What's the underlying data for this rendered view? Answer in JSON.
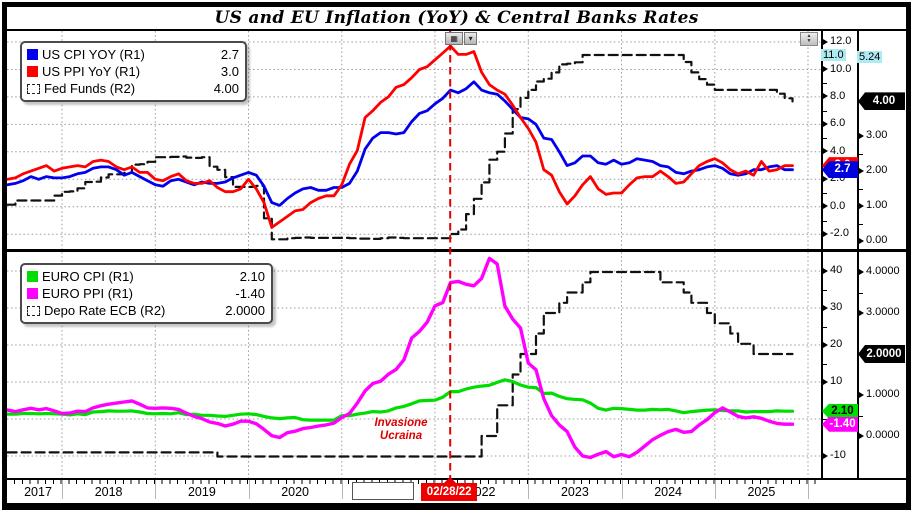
{
  "window": {
    "title": "US and EU Inflation (YoY) & Central Banks Rates"
  },
  "colors": {
    "highlight": "#aeeaf2",
    "us_cpi": "#0000ee",
    "us_ppi": "#ff0000",
    "eu_cpi": "#00dd00",
    "eu_ppi": "#ff00ff",
    "policy_rate": "#111111",
    "event": "#dd0000"
  },
  "chart_data": {
    "type": "line",
    "title": "US and EU Inflation (YoY) & Central Banks Rates",
    "x_axis": {
      "year_labels": [
        "2017",
        "2018",
        "2019",
        "2020",
        "2021",
        "2022",
        "2023",
        "2024",
        "2025"
      ],
      "gridline_years": [
        2018,
        2019,
        2020,
        2021,
        2022,
        2023,
        2024,
        2025,
        2026
      ],
      "visible_range": [
        2017.42,
        2026.14
      ],
      "points_start": "2017-06",
      "points_frequency": "monthly"
    },
    "event_line": {
      "date": "02/28/22",
      "t": 2022.163,
      "label_lines": [
        "Invasione",
        "Ucraina"
      ],
      "color": "#e00000"
    },
    "panels": [
      {
        "id": "us",
        "legend": [
          {
            "label": "US CPI YOY  (R1)",
            "value": "2.7",
            "swatch": "#0000ee",
            "swatch_type": "solid"
          },
          {
            "label": "US PPI YoY (R1)",
            "value": "3.0",
            "swatch": "#ff0000",
            "swatch_type": "solid"
          },
          {
            "label": "Fed Funds (R2)",
            "value": "4.00",
            "swatch": "#000000",
            "swatch_type": "dashed"
          }
        ],
        "gridlines_r1": [
          12,
          10,
          8,
          6,
          4,
          2,
          0,
          -2
        ],
        "r1_axis": {
          "ticks": {
            "values": [
              12,
              10,
              8,
              6,
              4,
              2,
              0,
              -2
            ],
            "labels": [
              "12.0",
              "10.0",
              "8.0",
              "6.0",
              "4.0",
              "2.0",
              "0.0",
              "-2.0"
            ]
          },
          "visible_range": [
            -3.1,
            12.8
          ],
          "high": {
            "label": "11.0",
            "v": 11.0
          },
          "badges": [
            {
              "label": "3.0",
              "v": 3.0,
              "bg": "#ff0000",
              "fg": "#ffffff"
            },
            {
              "label": "2.7",
              "v": 2.7,
              "bg": "#0000dd",
              "fg": "#ffffff"
            }
          ]
        },
        "r2_axis": {
          "ticks": {
            "values": [
              3,
              2,
              1,
              0
            ],
            "labels": [
              "3.00",
              "2.00",
              "1.00",
              "0.00"
            ]
          },
          "visible_range": [
            -0.23,
            6.02
          ],
          "high": {
            "label": "5.24",
            "v": 5.24
          },
          "badges": [
            {
              "label": "4.00",
              "v": 4.0,
              "bg": "#000000",
              "fg": "#ffffff"
            }
          ]
        },
        "series": [
          {
            "name": "Fed Funds",
            "axis": "r2",
            "color": "#111111",
            "dash": true,
            "step": true,
            "width": 2.2,
            "values": [
              1.04,
              1.16,
              1.16,
              1.16,
              1.16,
              1.16,
              1.3,
              1.41,
              1.42,
              1.51,
              1.69,
              1.7,
              1.82,
              1.91,
              1.91,
              1.95,
              2.19,
              2.2,
              2.27,
              2.4,
              2.4,
              2.41,
              2.42,
              2.39,
              2.38,
              2.4,
              2.13,
              2.04,
              1.83,
              1.55,
              1.55,
              1.55,
              1.58,
              0.65,
              0.05,
              0.05,
              0.08,
              0.09,
              0.1,
              0.09,
              0.09,
              0.09,
              0.09,
              0.09,
              0.08,
              0.07,
              0.07,
              0.06,
              0.08,
              0.1,
              0.09,
              0.08,
              0.08,
              0.08,
              0.08,
              0.08,
              0.08,
              0.2,
              0.33,
              0.77,
              1.21,
              1.68,
              2.33,
              2.56,
              3.08,
              3.78,
              4.1,
              4.33,
              4.57,
              4.65,
              4.83,
              5.06,
              5.08,
              5.12,
              5.33,
              5.33,
              5.33,
              5.33,
              5.33,
              5.33,
              5.33,
              5.33,
              5.33,
              5.33,
              5.33,
              5.33,
              5.33,
              5.13,
              4.83,
              4.64,
              4.48,
              4.33,
              4.33,
              4.33,
              4.33,
              4.33,
              4.33,
              4.33,
              4.33,
              4.22,
              4.09,
              4.0
            ]
          },
          {
            "name": "US CPI YOY",
            "axis": "r1",
            "color": "#0000ee",
            "dash": false,
            "step": false,
            "width": 2.8,
            "values": [
              1.6,
              1.7,
              1.9,
              2.2,
              2.0,
              2.2,
              2.1,
              2.1,
              2.2,
              2.4,
              2.5,
              2.8,
              2.9,
              2.9,
              2.7,
              2.3,
              2.5,
              2.2,
              1.9,
              1.6,
              1.5,
              1.9,
              2.0,
              1.8,
              1.6,
              1.8,
              1.7,
              1.7,
              1.8,
              2.1,
              2.3,
              2.5,
              2.3,
              1.5,
              0.3,
              0.1,
              0.6,
              1.0,
              1.3,
              1.4,
              1.2,
              1.2,
              1.4,
              1.4,
              1.7,
              2.6,
              4.2,
              5.0,
              5.4,
              5.4,
              5.3,
              5.4,
              6.2,
              6.8,
              7.0,
              7.5,
              7.9,
              8.5,
              8.3,
              8.6,
              9.1,
              8.5,
              8.3,
              8.2,
              7.7,
              7.1,
              6.5,
              6.4,
              6.0,
              5.0,
              4.9,
              4.0,
              3.0,
              3.2,
              3.7,
              3.7,
              3.2,
              3.1,
              3.4,
              3.1,
              3.2,
              3.5,
              3.4,
              3.3,
              3.0,
              2.9,
              2.5,
              2.4,
              2.6,
              2.7,
              2.9,
              3.0,
              2.8,
              2.4,
              2.3,
              2.4,
              2.7,
              2.7,
              2.9,
              3.0,
              2.7,
              2.7
            ]
          },
          {
            "name": "US PPI YoY",
            "axis": "r1",
            "color": "#ff0000",
            "dash": false,
            "step": false,
            "width": 2.8,
            "values": [
              2.0,
              2.1,
              2.4,
              2.6,
              2.8,
              3.0,
              2.6,
              2.8,
              2.9,
              3.0,
              2.9,
              3.3,
              3.4,
              3.3,
              2.9,
              2.7,
              2.9,
              2.5,
              2.5,
              2.0,
              1.9,
              2.2,
              2.4,
              1.9,
              1.7,
              1.7,
              1.9,
              1.4,
              1.1,
              1.1,
              1.3,
              2.0,
              1.3,
              0.3,
              -1.5,
              -1.1,
              -0.7,
              -0.3,
              -0.2,
              0.3,
              0.6,
              0.8,
              0.8,
              1.6,
              3.1,
              4.1,
              6.5,
              7.0,
              7.6,
              8.0,
              8.7,
              8.9,
              9.4,
              10.0,
              10.2,
              10.7,
              11.2,
              11.7,
              11.1,
              11.1,
              11.3,
              9.8,
              8.9,
              8.5,
              8.2,
              7.4,
              6.5,
              5.7,
              4.7,
              2.7,
              2.3,
              1.1,
              0.2,
              0.8,
              1.6,
              2.2,
              1.3,
              0.9,
              1.0,
              1.0,
              1.6,
              2.1,
              2.2,
              2.2,
              2.6,
              2.2,
              1.7,
              1.8,
              2.4,
              3.0,
              3.3,
              3.5,
              3.2,
              2.7,
              2.4,
              2.6,
              2.3,
              3.3,
              2.6,
              2.7,
              3.0,
              3.0
            ]
          }
        ]
      },
      {
        "id": "eu",
        "legend": [
          {
            "label": "EURO CPI (R1)",
            "value": "2.10",
            "swatch": "#00dd00",
            "swatch_type": "solid"
          },
          {
            "label": "EURO PPI (R1)",
            "value": "-1.40",
            "swatch": "#ff00ff",
            "swatch_type": "solid"
          },
          {
            "label": "Depo Rate ECB (R2)",
            "value": "2.0000",
            "swatch": "#000000",
            "swatch_type": "dashed"
          }
        ],
        "gridlines_r1": [
          40,
          30,
          20,
          10,
          0,
          -10
        ],
        "r1_axis": {
          "ticks": {
            "values": [
              40,
              30,
              20,
              10,
              -10
            ],
            "labels": [
              "40",
              "30",
              "20",
              "10",
              "-10"
            ]
          },
          "visible_range": [
            -15.9,
            45.1
          ],
          "high": null,
          "badges": [
            {
              "label": "2.10",
              "v": 2.1,
              "bg": "#00dd00",
              "fg": "#000000"
            },
            {
              "label": "-1.40",
              "v": -1.4,
              "bg": "#ff00ff",
              "fg": "#ffffff"
            }
          ]
        },
        "r2_axis": {
          "ticks": {
            "values": [
              4,
              3,
              1,
              0
            ],
            "labels": [
              "4.0000",
              "3.0000",
              "1.0000",
              "0.0000"
            ]
          },
          "visible_range": [
            -1.02,
            4.49
          ],
          "high": null,
          "badges": [
            {
              "label": "2.0000",
              "v": 2.0,
              "bg": "#000000",
              "fg": "#ffffff"
            }
          ]
        },
        "series": [
          {
            "name": "Depo Rate ECB",
            "axis": "r2",
            "color": "#111111",
            "dash": true,
            "step": true,
            "width": 2.2,
            "values": [
              -0.4,
              -0.4,
              -0.4,
              -0.4,
              -0.4,
              -0.4,
              -0.4,
              -0.4,
              -0.4,
              -0.4,
              -0.4,
              -0.4,
              -0.4,
              -0.4,
              -0.4,
              -0.4,
              -0.4,
              -0.4,
              -0.4,
              -0.4,
              -0.4,
              -0.4,
              -0.4,
              -0.4,
              -0.4,
              -0.4,
              -0.4,
              -0.5,
              -0.5,
              -0.5,
              -0.5,
              -0.5,
              -0.5,
              -0.5,
              -0.5,
              -0.5,
              -0.5,
              -0.5,
              -0.5,
              -0.5,
              -0.5,
              -0.5,
              -0.5,
              -0.5,
              -0.5,
              -0.5,
              -0.5,
              -0.5,
              -0.5,
              -0.5,
              -0.5,
              -0.5,
              -0.5,
              -0.5,
              -0.5,
              -0.5,
              -0.5,
              -0.5,
              -0.5,
              -0.5,
              -0.5,
              0.0,
              0.0,
              0.75,
              0.75,
              1.5,
              2.0,
              2.0,
              2.5,
              3.0,
              3.0,
              3.25,
              3.5,
              3.5,
              3.75,
              4.0,
              4.0,
              4.0,
              4.0,
              4.0,
              4.0,
              4.0,
              4.0,
              4.0,
              3.75,
              3.75,
              3.75,
              3.5,
              3.25,
              3.25,
              3.0,
              2.75,
              2.75,
              2.5,
              2.25,
              2.25,
              2.0,
              2.0,
              2.0,
              2.0,
              2.0,
              2.0
            ]
          },
          {
            "name": "EURO CPI",
            "axis": "r1",
            "color": "#00dd00",
            "dash": false,
            "step": false,
            "width": 3.2,
            "values": [
              1.3,
              1.3,
              1.5,
              1.5,
              1.4,
              1.5,
              1.4,
              1.3,
              1.1,
              1.4,
              1.2,
              1.9,
              2.0,
              2.2,
              2.1,
              2.1,
              2.2,
              1.9,
              1.5,
              1.4,
              1.5,
              1.4,
              1.7,
              1.2,
              1.3,
              1.0,
              1.0,
              0.8,
              0.7,
              1.0,
              1.3,
              1.4,
              1.2,
              0.7,
              0.3,
              0.1,
              0.3,
              0.4,
              -0.2,
              -0.3,
              -0.3,
              -0.3,
              -0.3,
              0.9,
              0.9,
              1.3,
              1.6,
              2.0,
              1.9,
              2.2,
              3.0,
              3.4,
              4.1,
              4.9,
              5.0,
              5.1,
              5.9,
              7.4,
              7.4,
              8.1,
              8.6,
              8.9,
              9.1,
              9.9,
              10.6,
              10.1,
              9.2,
              8.6,
              8.5,
              6.9,
              7.0,
              6.1,
              5.5,
              5.3,
              5.2,
              4.3,
              2.9,
              2.4,
              2.9,
              2.8,
              2.6,
              2.4,
              2.4,
              2.6,
              2.5,
              2.6,
              2.2,
              1.7,
              2.0,
              2.2,
              2.4,
              2.5,
              2.3,
              2.2,
              2.2,
              1.9,
              2.0,
              2.0,
              2.0,
              2.2,
              2.1,
              2.1
            ]
          },
          {
            "name": "EURO PPI",
            "axis": "r1",
            "color": "#ff00ff",
            "dash": false,
            "step": false,
            "width": 3.4,
            "values": [
              2.4,
              2.0,
              2.5,
              2.9,
              2.5,
              2.8,
              2.2,
              1.5,
              1.6,
              2.1,
              2.0,
              3.0,
              3.6,
              4.0,
              4.3,
              4.6,
              4.9,
              4.0,
              3.0,
              2.9,
              3.0,
              2.9,
              2.6,
              1.6,
              0.7,
              0.1,
              -0.8,
              -1.2,
              -1.9,
              -1.4,
              -0.6,
              -0.6,
              -1.3,
              -2.8,
              -4.5,
              -5.0,
              -3.7,
              -3.3,
              -2.6,
              -2.3,
              -1.9,
              -1.6,
              -1.1,
              0.4,
              1.5,
              4.3,
              7.6,
              9.6,
              10.2,
              12.1,
              13.4,
              16.0,
              21.9,
              23.7,
              26.2,
              30.6,
              31.5,
              36.9,
              37.2,
              36.4,
              36.0,
              38.0,
              43.4,
              41.9,
              30.5,
              27.0,
              24.6,
              15.1,
              13.3,
              5.5,
              0.9,
              -1.6,
              -3.4,
              -7.6,
              -10.0,
              -10.4,
              -9.5,
              -8.8,
              -10.2,
              -9.6,
              -10.2,
              -9.0,
              -7.3,
              -5.6,
              -4.4,
              -3.4,
              -2.8,
              -3.6,
              -3.4,
              -1.6,
              -0.2,
              1.7,
              3.0,
              1.9,
              0.7,
              0.3,
              0.6,
              0.2,
              -0.6,
              -1.2,
              -1.4,
              -1.4
            ]
          }
        ]
      }
    ]
  }
}
